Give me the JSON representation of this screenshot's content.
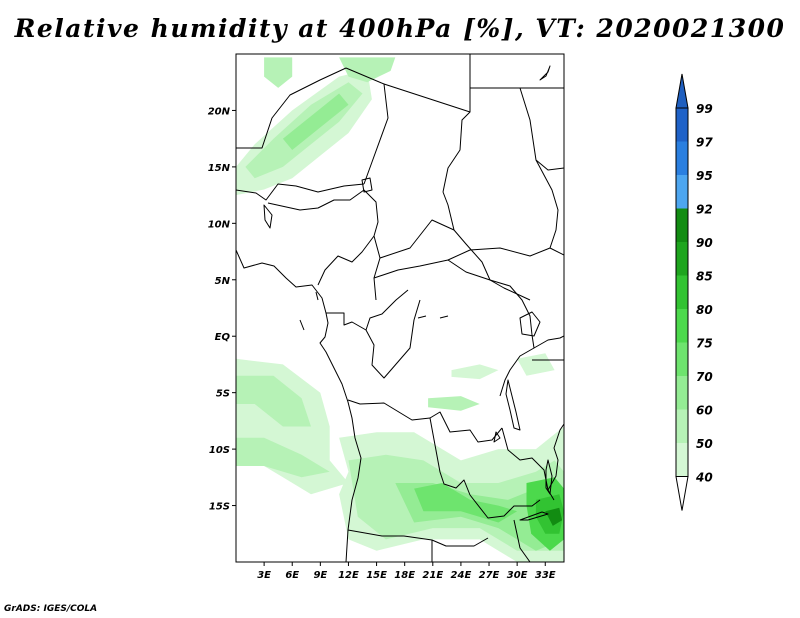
{
  "title": "Relative humidity at 400hPa [%], VT: 2020021300",
  "credit": "GrADS: IGES/COLA",
  "map": {
    "lon_range": [
      0,
      35
    ],
    "lat_range": [
      -20,
      25
    ],
    "lat_ticks": [
      {
        "value": 20,
        "label": "20N"
      },
      {
        "value": 15,
        "label": "15N"
      },
      {
        "value": 10,
        "label": "10N"
      },
      {
        "value": 5,
        "label": "5N"
      },
      {
        "value": 0,
        "label": "EQ"
      },
      {
        "value": -5,
        "label": "5S"
      },
      {
        "value": -10,
        "label": "10S"
      },
      {
        "value": -15,
        "label": "15S"
      }
    ],
    "lon_ticks": [
      {
        "value": 3,
        "label": "3E"
      },
      {
        "value": 6,
        "label": "6E"
      },
      {
        "value": 9,
        "label": "9E"
      },
      {
        "value": 12,
        "label": "12E"
      },
      {
        "value": 15,
        "label": "15E"
      },
      {
        "value": 18,
        "label": "18E"
      },
      {
        "value": 21,
        "label": "21E"
      },
      {
        "value": 24,
        "label": "24E"
      },
      {
        "value": 27,
        "label": "27E"
      },
      {
        "value": 30,
        "label": "30E"
      },
      {
        "value": 33,
        "label": "33E"
      }
    ]
  },
  "colorbar": {
    "levels": [
      {
        "label": "99",
        "color": "#1f62c8"
      },
      {
        "label": "97",
        "color": "#2a7fe0"
      },
      {
        "label": "95",
        "color": "#4da6f0"
      },
      {
        "label": "92",
        "color": "#128c12"
      },
      {
        "label": "90",
        "color": "#1ea51e"
      },
      {
        "label": "85",
        "color": "#32c332"
      },
      {
        "label": "80",
        "color": "#4cd94c"
      },
      {
        "label": "75",
        "color": "#6ee46e"
      },
      {
        "label": "70",
        "color": "#94ec94"
      },
      {
        "label": "60",
        "color": "#b6f2b6"
      },
      {
        "label": "50",
        "color": "#d4f7d4"
      },
      {
        "label": "40",
        "color": "#ecfbec"
      }
    ],
    "top_color": "#1f5fbf",
    "bottom_color": "#ffffff"
  },
  "humidity_regions": [
    {
      "name": "sahel-northwest-band",
      "level": "50",
      "pts": [
        [
          0,
          15
        ],
        [
          2,
          17
        ],
        [
          6,
          20
        ],
        [
          11,
          23
        ],
        [
          14,
          23.6
        ],
        [
          14.5,
          21
        ],
        [
          12,
          18
        ],
        [
          9,
          16
        ],
        [
          6,
          14
        ],
        [
          3,
          13
        ],
        [
          0,
          12.5
        ]
      ]
    },
    {
      "name": "sahel-northwest-core",
      "level": "60",
      "pts": [
        [
          1,
          15
        ],
        [
          4,
          17.5
        ],
        [
          8,
          20.5
        ],
        [
          12,
          22.5
        ],
        [
          13.5,
          21.5
        ],
        [
          11,
          19
        ],
        [
          8,
          17
        ],
        [
          5,
          15
        ],
        [
          2,
          14
        ]
      ]
    },
    {
      "name": "sahel-northwest-peak",
      "level": "70",
      "pts": [
        [
          5,
          17.5
        ],
        [
          8,
          19.5
        ],
        [
          11,
          21.5
        ],
        [
          12,
          20.5
        ],
        [
          9,
          18.5
        ],
        [
          6,
          16.5
        ]
      ]
    },
    {
      "name": "north-edge-west",
      "level": "60",
      "pts": [
        [
          3,
          24.7
        ],
        [
          6,
          24.7
        ],
        [
          6,
          23
        ],
        [
          4.5,
          22
        ],
        [
          3,
          23
        ]
      ]
    },
    {
      "name": "north-edge-east",
      "level": "60",
      "pts": [
        [
          11,
          24.7
        ],
        [
          17,
          24.7
        ],
        [
          16.5,
          23.5
        ],
        [
          14,
          22.5
        ],
        [
          12,
          23
        ]
      ]
    },
    {
      "name": "gulf-guinea-west",
      "level": "50",
      "pts": [
        [
          0,
          -2
        ],
        [
          5,
          -2.5
        ],
        [
          9,
          -5
        ],
        [
          10,
          -8
        ],
        [
          10,
          -11
        ],
        [
          12,
          -13
        ],
        [
          8,
          -14
        ],
        [
          5,
          -12.5
        ],
        [
          2,
          -11
        ],
        [
          0,
          -10
        ]
      ]
    },
    {
      "name": "gulf-guinea-core",
      "level": "60",
      "pts": [
        [
          0,
          -3.5
        ],
        [
          4,
          -3.5
        ],
        [
          7,
          -5.5
        ],
        [
          8,
          -8
        ],
        [
          5,
          -8
        ],
        [
          2,
          -6
        ],
        [
          0,
          -6
        ]
      ]
    },
    {
      "name": "gulf-guinea-south",
      "level": "60",
      "pts": [
        [
          0,
          -9
        ],
        [
          3,
          -9
        ],
        [
          7,
          -10.5
        ],
        [
          10,
          -12
        ],
        [
          7,
          -12.5
        ],
        [
          3,
          -11.5
        ],
        [
          0,
          -11.5
        ]
      ]
    },
    {
      "name": "southern-belt",
      "level": "50",
      "pts": [
        [
          11,
          -9
        ],
        [
          15,
          -8.5
        ],
        [
          19,
          -8.5
        ],
        [
          24,
          -11
        ],
        [
          28,
          -10
        ],
        [
          32,
          -10
        ],
        [
          35,
          -8
        ],
        [
          35,
          -20
        ],
        [
          30,
          -20
        ],
        [
          26,
          -18
        ],
        [
          20,
          -18
        ],
        [
          15,
          -19
        ],
        [
          12,
          -18
        ],
        [
          11,
          -14
        ],
        [
          12,
          -12
        ]
      ]
    },
    {
      "name": "southern-belt-core",
      "level": "60",
      "pts": [
        [
          12,
          -11
        ],
        [
          16,
          -10.5
        ],
        [
          20,
          -11
        ],
        [
          24,
          -13
        ],
        [
          28,
          -13
        ],
        [
          32,
          -12
        ],
        [
          34,
          -11
        ],
        [
          35,
          -12
        ],
        [
          35,
          -19
        ],
        [
          30,
          -19
        ],
        [
          26,
          -17
        ],
        [
          21,
          -17
        ],
        [
          16,
          -18
        ],
        [
          13,
          -16
        ]
      ]
    },
    {
      "name": "southern-belt-peak",
      "level": "70",
      "pts": [
        [
          17,
          -13
        ],
        [
          21,
          -13
        ],
        [
          25,
          -14
        ],
        [
          29,
          -14.5
        ],
        [
          32,
          -13.5
        ],
        [
          34,
          -13
        ],
        [
          35,
          -14
        ],
        [
          35,
          -18
        ],
        [
          32,
          -19
        ],
        [
          28,
          -17
        ],
        [
          24,
          -16
        ],
        [
          19,
          -16.5
        ]
      ]
    },
    {
      "name": "zambia-high",
      "level": "75",
      "pts": [
        [
          19,
          -13.5
        ],
        [
          22,
          -13
        ],
        [
          25,
          -14.5
        ],
        [
          28,
          -15
        ],
        [
          30,
          -15.5
        ],
        [
          28,
          -16.5
        ],
        [
          24,
          -15.5
        ],
        [
          20,
          -15.5
        ]
      ]
    },
    {
      "name": "malawi-high",
      "level": "80",
      "pts": [
        [
          31,
          -13
        ],
        [
          34,
          -12.5
        ],
        [
          35,
          -13.5
        ],
        [
          35,
          -18
        ],
        [
          33.5,
          -19
        ],
        [
          31.5,
          -17.5
        ],
        [
          31,
          -15
        ]
      ]
    },
    {
      "name": "malawi-peak",
      "level": "85",
      "pts": [
        [
          32,
          -14.5
        ],
        [
          34.5,
          -14
        ],
        [
          35,
          -15.5
        ],
        [
          34.5,
          -17.5
        ],
        [
          33,
          -17.5
        ],
        [
          32,
          -16
        ]
      ]
    },
    {
      "name": "malawi-max",
      "level": "92",
      "pts": [
        [
          33,
          -15.5
        ],
        [
          34.5,
          -15.2
        ],
        [
          34.8,
          -16.3
        ],
        [
          33.8,
          -16.8
        ]
      ]
    },
    {
      "name": "congo-streak-east",
      "level": "50",
      "pts": [
        [
          23,
          -3
        ],
        [
          26,
          -2.5
        ],
        [
          28,
          -3
        ],
        [
          26,
          -3.8
        ],
        [
          23,
          -3.6
        ]
      ]
    },
    {
      "name": "congo-streak-south",
      "level": "60",
      "pts": [
        [
          20.5,
          -5.5
        ],
        [
          24,
          -5.3
        ],
        [
          26,
          -6
        ],
        [
          24,
          -6.6
        ],
        [
          20.5,
          -6.3
        ]
      ]
    },
    {
      "name": "lake-victoria-patch",
      "level": "50",
      "pts": [
        [
          30,
          -2
        ],
        [
          33,
          -1.5
        ],
        [
          34,
          -3
        ],
        [
          31,
          -3.5
        ]
      ]
    }
  ]
}
